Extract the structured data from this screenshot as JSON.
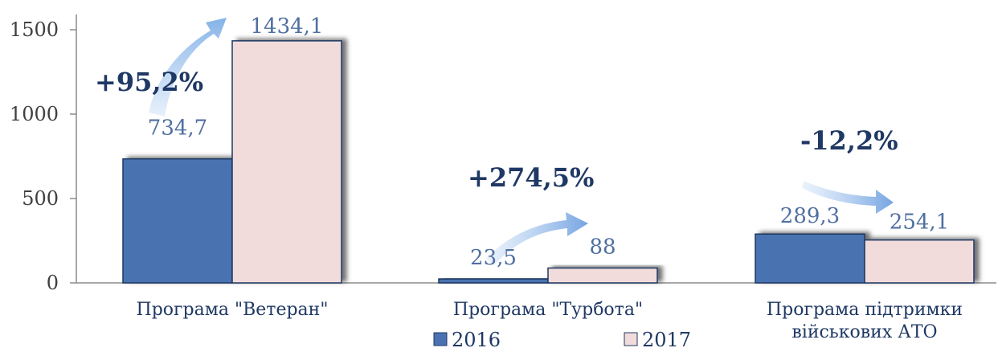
{
  "chart_data": {
    "type": "bar",
    "categories": [
      [
        "Програма \"Ветеран\""
      ],
      [
        "Програма \"Турбота\""
      ],
      [
        "Програма підтримки",
        "військових АТО"
      ]
    ],
    "series": [
      {
        "name": "2016",
        "values": [
          734.7,
          23.5,
          289.3
        ],
        "labels": [
          "734,7",
          "23,5",
          "289,3"
        ],
        "color": "#4a72b0"
      },
      {
        "name": "2017",
        "values": [
          1434.1,
          88,
          254.1
        ],
        "labels": [
          "1434,1",
          "88",
          "254,1"
        ],
        "color": "#f2dcdb"
      }
    ],
    "changes": [
      "+95,2%",
      "+274,5%",
      "-12,2%"
    ],
    "yticks": [
      0,
      500,
      1000,
      1500
    ],
    "ytick_labels": [
      "0",
      "500",
      "1000",
      "1500"
    ],
    "ylim": [
      0,
      1500
    ],
    "legend_position": "bottom",
    "grid": false
  }
}
